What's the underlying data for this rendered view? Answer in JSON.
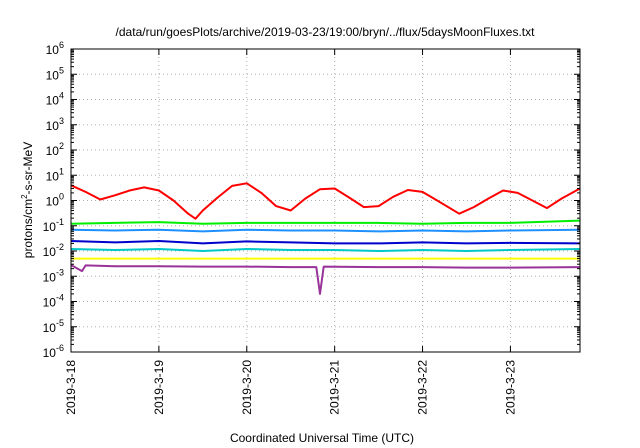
{
  "chart_data": {
    "type": "line",
    "title": "/data/run/goesPlots/archive/2019-03-23/19:00/bryn/../flux/5daysMoonFluxes.txt",
    "xlabel": "Coordinated Universal Time (UTC)",
    "ylabel": {
      "prefix": "protons/cm",
      "superscript": "2",
      "suffix": "-s-sr-MeV"
    },
    "y_scale": "log",
    "ylim_exp": [
      -6,
      6
    ],
    "y_ticks": [
      {
        "base": "10",
        "exp": "-6"
      },
      {
        "base": "10",
        "exp": "-5"
      },
      {
        "base": "10",
        "exp": "-4"
      },
      {
        "base": "10",
        "exp": "-3"
      },
      {
        "base": "10",
        "exp": "-2"
      },
      {
        "base": "10",
        "exp": "-1"
      },
      {
        "base": "10",
        "exp": "0"
      },
      {
        "base": "10",
        "exp": "1"
      },
      {
        "base": "10",
        "exp": "2"
      },
      {
        "base": "10",
        "exp": "3"
      },
      {
        "base": "10",
        "exp": "4"
      },
      {
        "base": "10",
        "exp": "5"
      },
      {
        "base": "10",
        "exp": "6"
      }
    ],
    "xlim": [
      "2019-03-18T00:00",
      "2019-03-23T19:00"
    ],
    "x_ticks": [
      "2019-3-18",
      "2019-3-19",
      "2019-3-20",
      "2019-3-21",
      "2019-3-22",
      "2019-3-23"
    ],
    "grid": true,
    "series": [
      {
        "color": "#ff0000",
        "points": [
          [
            "2019-03-18T00:00",
            4.0
          ],
          [
            "2019-03-18T04:00",
            2.2
          ],
          [
            "2019-03-18T08:00",
            1.1
          ],
          [
            "2019-03-18T12:00",
            1.6
          ],
          [
            "2019-03-18T16:00",
            2.5
          ],
          [
            "2019-03-18T20:00",
            3.3
          ],
          [
            "2019-03-19T00:00",
            2.5
          ],
          [
            "2019-03-19T04:00",
            1.0
          ],
          [
            "2019-03-19T08:00",
            0.3
          ],
          [
            "2019-03-19T10:00",
            0.19
          ],
          [
            "2019-03-19T12:00",
            0.4
          ],
          [
            "2019-03-19T16:00",
            1.3
          ],
          [
            "2019-03-19T20:00",
            3.8
          ],
          [
            "2019-03-20T00:00",
            4.8
          ],
          [
            "2019-03-20T04:00",
            2.0
          ],
          [
            "2019-03-20T08:00",
            0.6
          ],
          [
            "2019-03-20T12:00",
            0.4
          ],
          [
            "2019-03-20T16:00",
            1.2
          ],
          [
            "2019-03-20T20:00",
            2.8
          ],
          [
            "2019-03-21T00:00",
            3.0
          ],
          [
            "2019-03-21T04:00",
            1.3
          ],
          [
            "2019-03-21T08:00",
            0.55
          ],
          [
            "2019-03-21T12:00",
            0.6
          ],
          [
            "2019-03-21T16:00",
            1.4
          ],
          [
            "2019-03-21T20:00",
            2.6
          ],
          [
            "2019-03-22T00:00",
            2.2
          ],
          [
            "2019-03-22T04:00",
            1.0
          ],
          [
            "2019-03-22T10:00",
            0.3
          ],
          [
            "2019-03-22T14:00",
            0.55
          ],
          [
            "2019-03-22T18:00",
            1.2
          ],
          [
            "2019-03-22T22:00",
            2.5
          ],
          [
            "2019-03-23T02:00",
            2.0
          ],
          [
            "2019-03-23T06:00",
            1.0
          ],
          [
            "2019-03-23T10:00",
            0.5
          ],
          [
            "2019-03-23T14:00",
            1.2
          ],
          [
            "2019-03-23T19:00",
            3.0
          ]
        ]
      },
      {
        "color": "#00ee00",
        "points": [
          [
            "2019-03-18T00:00",
            0.12
          ],
          [
            "2019-03-18T12:00",
            0.13
          ],
          [
            "2019-03-19T00:00",
            0.14
          ],
          [
            "2019-03-19T12:00",
            0.12
          ],
          [
            "2019-03-20T00:00",
            0.13
          ],
          [
            "2019-03-20T12:00",
            0.13
          ],
          [
            "2019-03-21T00:00",
            0.13
          ],
          [
            "2019-03-21T12:00",
            0.13
          ],
          [
            "2019-03-22T00:00",
            0.12
          ],
          [
            "2019-03-22T12:00",
            0.13
          ],
          [
            "2019-03-23T00:00",
            0.13
          ],
          [
            "2019-03-23T19:00",
            0.16
          ]
        ]
      },
      {
        "color": "#1e90ff",
        "points": [
          [
            "2019-03-18T00:00",
            0.07
          ],
          [
            "2019-03-18T12:00",
            0.065
          ],
          [
            "2019-03-19T00:00",
            0.07
          ],
          [
            "2019-03-19T12:00",
            0.06
          ],
          [
            "2019-03-20T00:00",
            0.07
          ],
          [
            "2019-03-20T12:00",
            0.065
          ],
          [
            "2019-03-21T00:00",
            0.065
          ],
          [
            "2019-03-21T12:00",
            0.06
          ],
          [
            "2019-03-22T00:00",
            0.065
          ],
          [
            "2019-03-22T12:00",
            0.06
          ],
          [
            "2019-03-23T00:00",
            0.065
          ],
          [
            "2019-03-23T19:00",
            0.07
          ]
        ]
      },
      {
        "color": "#0000cc",
        "points": [
          [
            "2019-03-18T00:00",
            0.025
          ],
          [
            "2019-03-18T12:00",
            0.022
          ],
          [
            "2019-03-19T00:00",
            0.025
          ],
          [
            "2019-03-19T12:00",
            0.02
          ],
          [
            "2019-03-20T00:00",
            0.024
          ],
          [
            "2019-03-20T12:00",
            0.022
          ],
          [
            "2019-03-21T00:00",
            0.02
          ],
          [
            "2019-03-21T12:00",
            0.02
          ],
          [
            "2019-03-22T00:00",
            0.022
          ],
          [
            "2019-03-22T12:00",
            0.02
          ],
          [
            "2019-03-23T00:00",
            0.021
          ],
          [
            "2019-03-23T19:00",
            0.02
          ]
        ]
      },
      {
        "color": "#00c8c8",
        "points": [
          [
            "2019-03-18T00:00",
            0.012
          ],
          [
            "2019-03-18T12:00",
            0.011
          ],
          [
            "2019-03-19T00:00",
            0.012
          ],
          [
            "2019-03-19T12:00",
            0.01
          ],
          [
            "2019-03-20T00:00",
            0.012
          ],
          [
            "2019-03-20T12:00",
            0.011
          ],
          [
            "2019-03-21T00:00",
            0.011
          ],
          [
            "2019-03-21T12:00",
            0.01
          ],
          [
            "2019-03-22T00:00",
            0.011
          ],
          [
            "2019-03-22T12:00",
            0.01
          ],
          [
            "2019-03-23T00:00",
            0.011
          ],
          [
            "2019-03-23T19:00",
            0.012
          ]
        ]
      },
      {
        "color": "#ffff00",
        "points": [
          [
            "2019-03-18T00:00",
            0.005
          ],
          [
            "2019-03-18T12:00",
            0.005
          ],
          [
            "2019-03-19T00:00",
            0.005
          ],
          [
            "2019-03-19T12:00",
            0.005
          ],
          [
            "2019-03-20T00:00",
            0.005
          ],
          [
            "2019-03-20T12:00",
            0.005
          ],
          [
            "2019-03-21T00:00",
            0.005
          ],
          [
            "2019-03-21T12:00",
            0.005
          ],
          [
            "2019-03-22T00:00",
            0.005
          ],
          [
            "2019-03-22T12:00",
            0.005
          ],
          [
            "2019-03-23T00:00",
            0.005
          ],
          [
            "2019-03-23T19:00",
            0.005
          ]
        ]
      },
      {
        "color": "#993399",
        "points": [
          [
            "2019-03-18T00:00",
            0.0028
          ],
          [
            "2019-03-18T03:00",
            0.0016
          ],
          [
            "2019-03-18T04:00",
            0.0027
          ],
          [
            "2019-03-18T12:00",
            0.0025
          ],
          [
            "2019-03-19T00:00",
            0.0025
          ],
          [
            "2019-03-19T12:00",
            0.0024
          ],
          [
            "2019-03-20T00:00",
            0.0024
          ],
          [
            "2019-03-20T12:00",
            0.0023
          ],
          [
            "2019-03-20T19:00",
            0.0023
          ],
          [
            "2019-03-20T20:00",
            0.0002
          ],
          [
            "2019-03-20T21:00",
            0.0024
          ],
          [
            "2019-03-21T12:00",
            0.0023
          ],
          [
            "2019-03-22T00:00",
            0.0023
          ],
          [
            "2019-03-22T12:00",
            0.0022
          ],
          [
            "2019-03-23T00:00",
            0.0022
          ],
          [
            "2019-03-23T19:00",
            0.0023
          ]
        ]
      }
    ]
  }
}
